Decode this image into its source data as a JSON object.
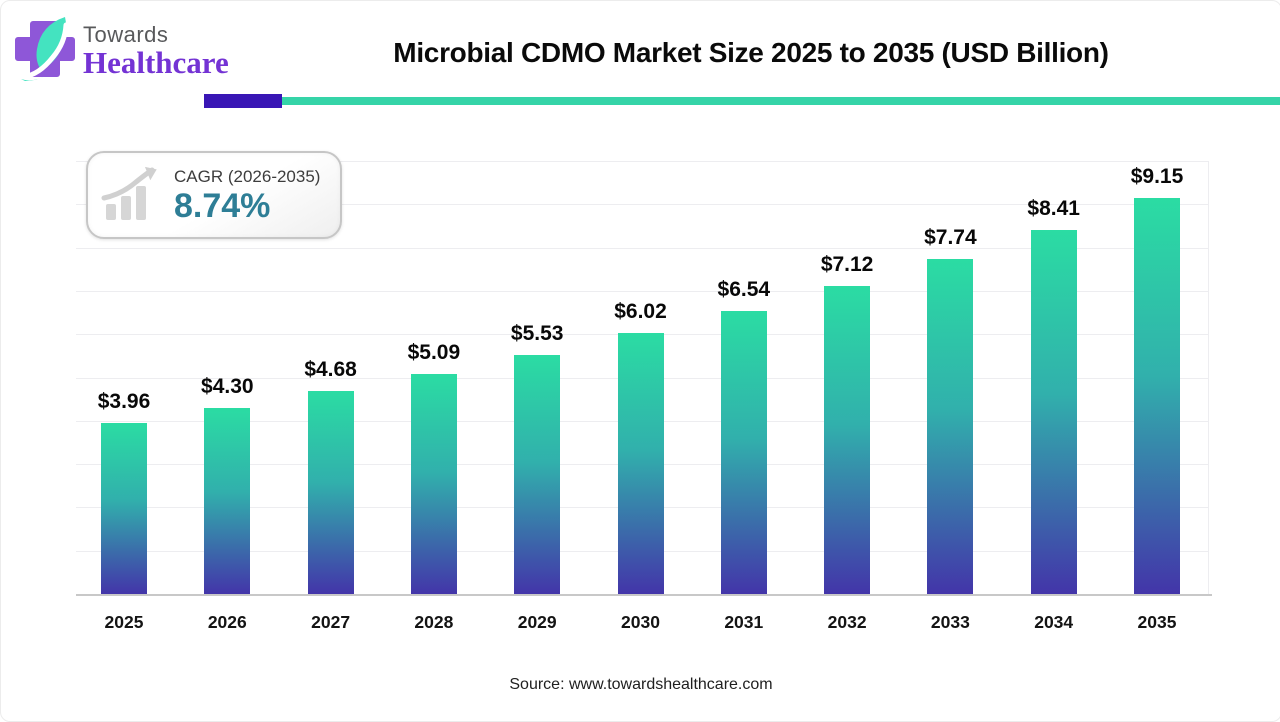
{
  "logo": {
    "line1": "Towards",
    "line2": "Healthcare"
  },
  "title": "Microbial CDMO Market Size 2025 to 2035 (USD Billion)",
  "cagr_badge": {
    "label": "CAGR (2026-2035)",
    "value": "8.74%"
  },
  "source": "Source: www.towardshealthcare.com",
  "chart_data": {
    "type": "bar",
    "title": "Microbial CDMO Market Size 2025 to 2035 (USD Billion)",
    "unit": "USD Billion",
    "categories": [
      "2025",
      "2026",
      "2027",
      "2028",
      "2029",
      "2030",
      "2031",
      "2032",
      "2033",
      "2034",
      "2035"
    ],
    "values": [
      3.96,
      4.3,
      4.68,
      5.09,
      5.53,
      6.02,
      6.54,
      7.12,
      7.74,
      8.41,
      9.15
    ],
    "value_labels": [
      "$3.96",
      "$4.30",
      "$4.68",
      "$5.09",
      "$5.53",
      "$6.02",
      "$6.54",
      "$7.12",
      "$7.74",
      "$8.41",
      "$9.15"
    ],
    "xlabel": "",
    "ylabel": "",
    "ylim": [
      0,
      10
    ],
    "grid_step": 1,
    "grid": true,
    "legend": "none",
    "bar_gradient": [
      "#2bdca3",
      "#31b0ac",
      "#4335a9"
    ]
  },
  "colors": {
    "accent_purple_rule": "#3916b5",
    "accent_teal_rule": "#35d4a8",
    "cagr_value_teal": "#2e7e96",
    "logo_purple": "#8e57d8",
    "logo_text_purple": "#7433d4",
    "leaf_mint": "#44e3c0",
    "axis_gray": "#c8c8c8",
    "gridline_gray": "#ededf0"
  }
}
